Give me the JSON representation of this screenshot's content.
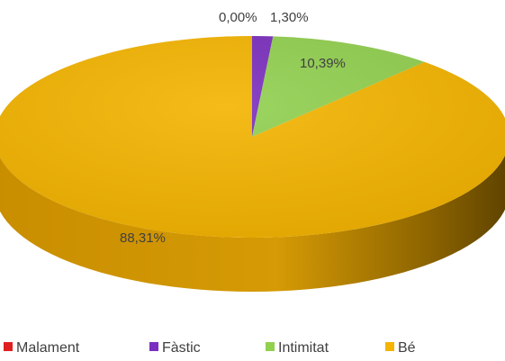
{
  "chart_data": {
    "type": "pie",
    "title": "",
    "style": "3d",
    "legend_position": "bottom",
    "slices": [
      {
        "name": "Malament",
        "value": 0.0,
        "label": "0,00%",
        "color": "#e02020"
      },
      {
        "name": "Fàstic",
        "value": 1.3,
        "label": "1,30%",
        "color": "#7b2fbe"
      },
      {
        "name": "Intimitat",
        "value": 10.39,
        "label": "10,39%",
        "color": "#92d050"
      },
      {
        "name": "Bé",
        "value": 88.31,
        "label": "88,31%",
        "color": "#f4b400"
      }
    ]
  }
}
